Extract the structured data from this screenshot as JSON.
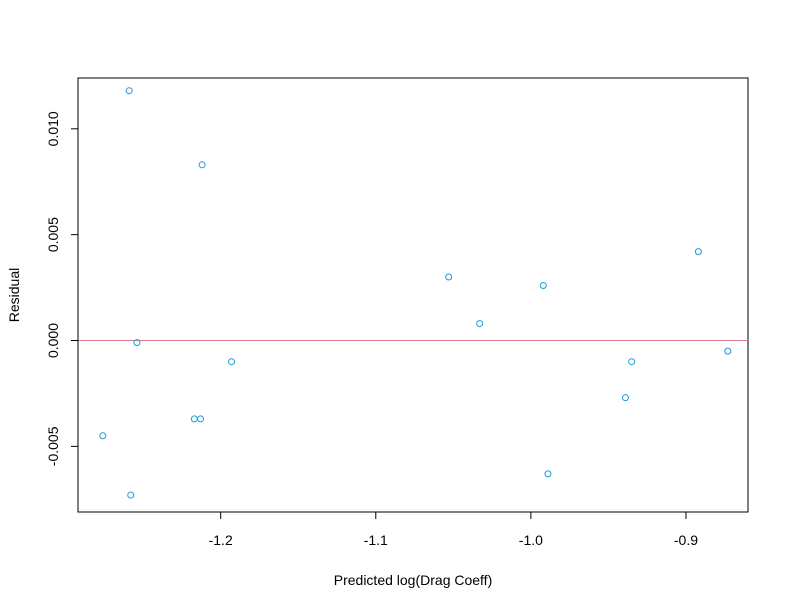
{
  "chart_data": {
    "type": "scatter",
    "title": "",
    "xlabel": "Predicted log(Drag Coeff)",
    "ylabel": "Residual",
    "xlim": [
      -1.292,
      -0.86
    ],
    "ylim": [
      -0.0081,
      0.0124
    ],
    "x_ticks": [
      -1.2,
      -1.1,
      -1.0,
      -0.9
    ],
    "x_tick_labels": [
      "-1.2",
      "-1.1",
      "-1.0",
      "-0.9"
    ],
    "y_ticks": [
      -0.005,
      0.0,
      0.005,
      0.01
    ],
    "y_tick_labels": [
      "-0.005",
      "0.000",
      "0.005",
      "0.010"
    ],
    "grid": false,
    "reference_line": {
      "y": 0,
      "color": "#e07a8a"
    },
    "marker_color": "#1e9bd7",
    "series": [
      {
        "points": [
          {
            "x": -1.259,
            "y": 0.0118
          },
          {
            "x": -1.212,
            "y": 0.0083
          },
          {
            "x": -1.254,
            "y": -0.0001
          },
          {
            "x": -1.193,
            "y": -0.001
          },
          {
            "x": -1.276,
            "y": -0.0045
          },
          {
            "x": -1.217,
            "y": -0.0037
          },
          {
            "x": -1.213,
            "y": -0.0037
          },
          {
            "x": -1.258,
            "y": -0.0073
          },
          {
            "x": -1.053,
            "y": 0.003
          },
          {
            "x": -1.033,
            "y": 0.0008
          },
          {
            "x": -0.992,
            "y": 0.0026
          },
          {
            "x": -0.989,
            "y": -0.0063
          },
          {
            "x": -0.939,
            "y": -0.0027
          },
          {
            "x": -0.935,
            "y": -0.001
          },
          {
            "x": -0.892,
            "y": 0.0042
          },
          {
            "x": -0.873,
            "y": -0.0005
          }
        ]
      }
    ]
  }
}
